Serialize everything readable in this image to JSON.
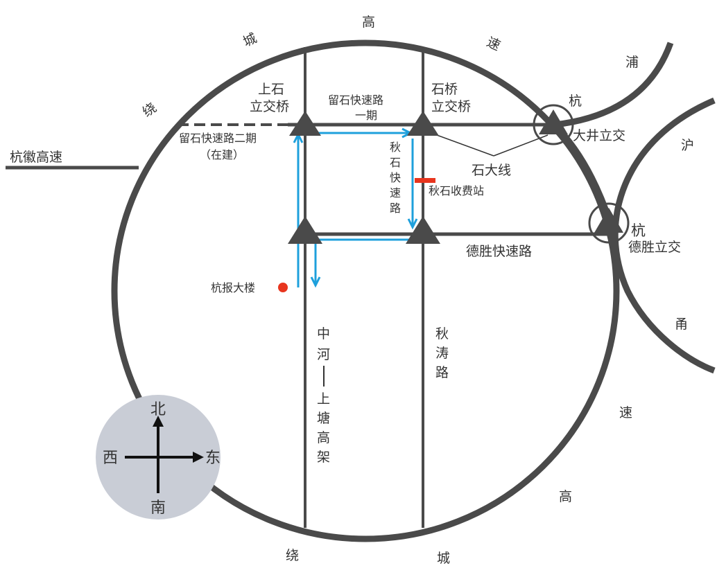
{
  "colors": {
    "road": "#4a4a4a",
    "route": "#1ea0dc",
    "marker_red": "#e8351e",
    "compass_bg": "#c9cdd6",
    "compass_arrow": "#111111"
  },
  "ring_labels": {
    "rao1": "绕",
    "cheng1": "城",
    "gao1": "高",
    "su1": "速",
    "gao2": "高",
    "su2": "速",
    "rao2": "绕",
    "cheng2": "城"
  },
  "hn_labels": {
    "hang": "杭",
    "pu": "浦"
  },
  "hy_labels": {
    "hu": "沪",
    "hang": "杭",
    "yong": "甬",
    "su": "速"
  },
  "roads": {
    "hanghui": "杭徽高速",
    "desheng_expressway": "德胜快速路",
    "qiushi_expressway": "秋石快速路",
    "shida_line": "石大线",
    "qiutao_road": "秋涛路",
    "zhonghe_col1": [
      "中",
      "河"
    ],
    "zhonghe_col2": [
      "上",
      "塘",
      "高",
      "架"
    ],
    "qiutao_col": [
      "秋",
      "涛",
      "路"
    ],
    "qiushi_col": [
      "秋",
      "石",
      "快",
      "速",
      "路"
    ],
    "tianmu_phase1_line1": "留石快速路",
    "tianmu_phase1_line2": "一期",
    "tianmu_phase2_line1": "留石快速路二期",
    "tianmu_phase2_line2": "（在建）"
  },
  "interchanges": {
    "shangshi_line1": "上石",
    "shangshi_line2": "立交桥",
    "shiqiao_line1": "石桥",
    "shiqiao_line2": "立交桥",
    "dajing": "大井立交",
    "desheng": "德胜立交"
  },
  "pois": {
    "hangbao": "杭报大楼",
    "toll": "秋石收费站"
  },
  "compass": {
    "north": "北",
    "south": "南",
    "east": "东",
    "west": "西"
  },
  "icons": {
    "interchange": "triangle-interchange-icon",
    "hub": "circled-interchange-icon",
    "poi": "red-dot-icon"
  }
}
